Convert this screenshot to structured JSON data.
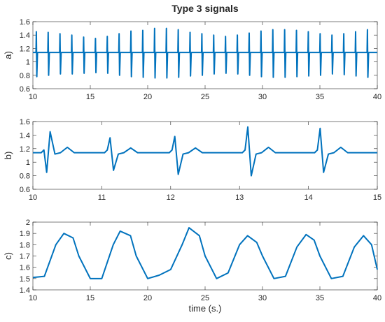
{
  "title": "Type 3 signals",
  "chart_data": [
    {
      "type": "line",
      "y_label": "a)",
      "color": "#0072bd",
      "xlim": [
        10,
        40
      ],
      "xticks": [
        10,
        15,
        20,
        25,
        30,
        35,
        40
      ],
      "ylim": [
        0.6,
        1.6
      ],
      "yticks": [
        0.6,
        0.8,
        1,
        1.2,
        1.4,
        1.6
      ],
      "x": [
        10,
        10.27,
        10.3,
        10.34,
        10.4,
        11.3,
        11.33,
        11.37,
        11.43,
        12.33,
        12.36,
        12.4,
        12.46,
        13.36,
        13.39,
        13.43,
        13.49,
        14.39,
        14.42,
        14.46,
        14.52,
        15.42,
        15.45,
        15.49,
        15.55,
        16.45,
        16.48,
        16.52,
        16.58,
        17.48,
        17.51,
        17.55,
        17.61,
        18.51,
        18.54,
        18.58,
        18.64,
        19.54,
        19.57,
        19.61,
        19.67,
        20.57,
        20.6,
        20.64,
        20.7,
        21.6,
        21.63,
        21.67,
        21.73,
        22.63,
        22.66,
        22.7,
        22.76,
        23.66,
        23.69,
        23.73,
        23.79,
        24.69,
        24.72,
        24.76,
        24.82,
        25.72,
        25.75,
        25.79,
        25.85,
        26.75,
        26.78,
        26.82,
        26.88,
        27.78,
        27.81,
        27.85,
        27.91,
        28.81,
        28.84,
        28.88,
        28.94,
        29.84,
        29.87,
        29.91,
        29.97,
        30.87,
        30.9,
        30.94,
        31,
        31.9,
        31.93,
        31.97,
        32.03,
        32.93,
        32.96,
        33,
        33.06,
        33.96,
        33.99,
        34.03,
        34.09,
        34.99,
        35.02,
        35.06,
        35.12,
        36.02,
        36.05,
        36.09,
        36.15,
        37.05,
        37.08,
        37.12,
        37.18,
        38.08,
        38.11,
        38.15,
        38.21,
        39.11,
        39.14,
        39.18,
        39.24,
        40
      ],
      "values": [
        1.14,
        1.14,
        1.45,
        0.78,
        1.14,
        1.14,
        1.44,
        0.8,
        1.14,
        1.14,
        1.42,
        0.82,
        1.14,
        1.14,
        1.4,
        0.82,
        1.14,
        1.14,
        1.37,
        0.83,
        1.14,
        1.14,
        1.35,
        0.84,
        1.14,
        1.14,
        1.38,
        0.83,
        1.14,
        1.14,
        1.42,
        0.8,
        1.14,
        1.14,
        1.46,
        0.78,
        1.14,
        1.14,
        1.47,
        0.77,
        1.14,
        1.14,
        1.5,
        0.76,
        1.14,
        1.14,
        1.5,
        0.76,
        1.14,
        1.14,
        1.48,
        0.77,
        1.14,
        1.14,
        1.44,
        0.79,
        1.14,
        1.14,
        1.42,
        0.8,
        1.14,
        1.14,
        1.4,
        0.82,
        1.14,
        1.14,
        1.38,
        0.83,
        1.14,
        1.14,
        1.4,
        0.82,
        1.14,
        1.14,
        1.43,
        0.8,
        1.14,
        1.14,
        1.46,
        0.78,
        1.14,
        1.14,
        1.48,
        0.77,
        1.14,
        1.14,
        1.48,
        0.77,
        1.14,
        1.14,
        1.47,
        0.78,
        1.14,
        1.14,
        1.45,
        0.79,
        1.14,
        1.14,
        1.42,
        0.8,
        1.14,
        1.14,
        1.4,
        0.82,
        1.14,
        1.14,
        1.42,
        0.81,
        1.14,
        1.14,
        1.45,
        0.79,
        1.14,
        1.14,
        1.48,
        0.77,
        1.14,
        1.14
      ]
    },
    {
      "type": "line",
      "y_label": "b)",
      "color": "#0072bd",
      "xlim": [
        10,
        15
      ],
      "xticks": [
        10,
        11,
        12,
        13,
        14,
        15
      ],
      "ylim": [
        0.6,
        1.6
      ],
      "yticks": [
        0.6,
        0.8,
        1,
        1.2,
        1.4,
        1.6
      ],
      "x": [
        10,
        10.12,
        10.16,
        10.2,
        10.25,
        10.32,
        10.4,
        10.5,
        10.6,
        11.04,
        11.08,
        11.12,
        11.17,
        11.24,
        11.32,
        11.42,
        11.52,
        11.98,
        12.02,
        12.06,
        12.11,
        12.18,
        12.26,
        12.36,
        12.46,
        13.04,
        13.08,
        13.12,
        13.17,
        13.24,
        13.32,
        13.42,
        13.52,
        14.09,
        14.13,
        14.17,
        14.22,
        14.29,
        14.37,
        14.47,
        14.57,
        15
      ],
      "values": [
        1.14,
        1.14,
        1.18,
        0.85,
        1.45,
        1.12,
        1.14,
        1.22,
        1.14,
        1.14,
        1.18,
        1.36,
        0.88,
        1.12,
        1.14,
        1.21,
        1.14,
        1.14,
        1.18,
        1.38,
        0.82,
        1.12,
        1.14,
        1.21,
        1.14,
        1.14,
        1.18,
        1.52,
        0.8,
        1.12,
        1.14,
        1.22,
        1.14,
        1.14,
        1.18,
        1.5,
        0.85,
        1.12,
        1.14,
        1.22,
        1.14,
        1.14
      ]
    },
    {
      "type": "line",
      "y_label": "c)",
      "x_label": "time (s.)",
      "color": "#0072bd",
      "xlim": [
        10,
        40
      ],
      "xticks": [
        10,
        15,
        20,
        25,
        30,
        35,
        40
      ],
      "ylim": [
        1.4,
        2
      ],
      "yticks": [
        1.4,
        1.5,
        1.6,
        1.7,
        1.8,
        1.9,
        2
      ],
      "x": [
        10,
        11,
        12,
        12.7,
        13.5,
        14,
        15,
        16,
        17,
        17.6,
        18.5,
        19,
        20,
        21,
        22,
        23,
        23.6,
        24.5,
        25,
        26,
        27,
        28,
        28.7,
        29.5,
        30,
        31,
        32,
        33,
        33.8,
        34.5,
        35,
        36,
        37,
        38,
        38.8,
        39.5,
        40
      ],
      "values": [
        1.51,
        1.52,
        1.8,
        1.9,
        1.86,
        1.7,
        1.5,
        1.5,
        1.8,
        1.92,
        1.88,
        1.7,
        1.5,
        1.53,
        1.58,
        1.8,
        1.95,
        1.88,
        1.7,
        1.5,
        1.55,
        1.8,
        1.88,
        1.82,
        1.7,
        1.5,
        1.52,
        1.78,
        1.89,
        1.84,
        1.7,
        1.5,
        1.52,
        1.78,
        1.88,
        1.8,
        1.58
      ]
    }
  ]
}
